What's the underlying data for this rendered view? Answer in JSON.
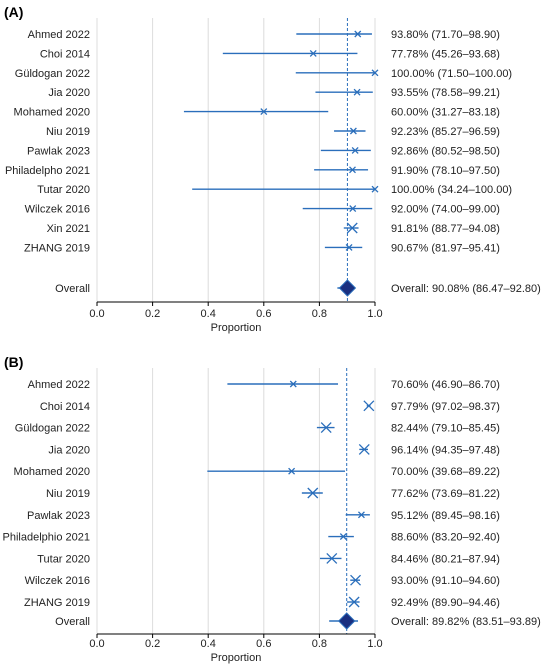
{
  "chart_data": [
    {
      "type": "forest",
      "panel_label": "(A)",
      "xlabel": "Proportion",
      "xlim": [
        0.0,
        1.0
      ],
      "x_ticks": [
        "0.0",
        "0.2",
        "0.4",
        "0.6",
        "0.8",
        "1.0"
      ],
      "grid": true,
      "reference_line": 0.9008,
      "studies": [
        {
          "name": "Ahmed 2022",
          "estimate": 0.938,
          "lower": 0.717,
          "upper": 0.989,
          "label": "93.80% (71.70–98.90)"
        },
        {
          "name": "Choi 2014",
          "estimate": 0.7778,
          "lower": 0.4526,
          "upper": 0.9368,
          "label": "77.78% (45.26–93.68)"
        },
        {
          "name": "Güldogan 2022",
          "estimate": 1.0,
          "lower": 0.715,
          "upper": 1.0,
          "label": "100.00% (71.50–100.00)"
        },
        {
          "name": "Jia 2020",
          "estimate": 0.9355,
          "lower": 0.7858,
          "upper": 0.9921,
          "label": "93.55% (78.58–99.21)"
        },
        {
          "name": "Mohamed 2020",
          "estimate": 0.6,
          "lower": 0.3127,
          "upper": 0.8318,
          "label": "60.00% (31.27–83.18)"
        },
        {
          "name": "Niu 2019",
          "estimate": 0.9223,
          "lower": 0.8527,
          "upper": 0.9659,
          "label": "92.23% (85.27–96.59)"
        },
        {
          "name": "Pawlak 2023",
          "estimate": 0.9286,
          "lower": 0.8052,
          "upper": 0.985,
          "label": "92.86% (80.52–98.50)"
        },
        {
          "name": "Philadelpho 2021",
          "estimate": 0.919,
          "lower": 0.781,
          "upper": 0.975,
          "label": "91.90% (78.10–97.50)"
        },
        {
          "name": "Tutar 2020",
          "estimate": 1.0,
          "lower": 0.3424,
          "upper": 1.0,
          "label": "100.00% (34.24–100.00)"
        },
        {
          "name": "Wilczek 2016",
          "estimate": 0.92,
          "lower": 0.74,
          "upper": 0.99,
          "label": "92.00% (74.00–99.00)"
        },
        {
          "name": "Xin 2021",
          "estimate": 0.9181,
          "lower": 0.8877,
          "upper": 0.9408,
          "label": "91.81% (88.77–94.08)"
        },
        {
          "name": "ZHANG 2019",
          "estimate": 0.9067,
          "lower": 0.8197,
          "upper": 0.9541,
          "label": "90.67% (81.97–95.41)"
        }
      ],
      "overall": {
        "name": "Overall",
        "estimate": 0.9008,
        "lower": 0.8647,
        "upper": 0.928,
        "label": "Overall: 90.08% (86.47–92.80)"
      }
    },
    {
      "type": "forest",
      "panel_label": "(B)",
      "xlabel": "Proportion",
      "xlim": [
        0.0,
        1.0
      ],
      "x_ticks": [
        "0.0",
        "0.2",
        "0.4",
        "0.6",
        "0.8",
        "1.0"
      ],
      "grid": true,
      "reference_line": 0.8982,
      "studies": [
        {
          "name": "Ahmed 2022",
          "estimate": 0.706,
          "lower": 0.469,
          "upper": 0.867,
          "label": "70.60% (46.90–86.70)"
        },
        {
          "name": "Choi 2014",
          "estimate": 0.9779,
          "lower": 0.9702,
          "upper": 0.9837,
          "label": "97.79% (97.02–98.37)"
        },
        {
          "name": "Güldogan 2022",
          "estimate": 0.8244,
          "lower": 0.791,
          "upper": 0.8545,
          "label": "82.44% (79.10–85.45)"
        },
        {
          "name": "Jia 2020",
          "estimate": 0.9614,
          "lower": 0.9435,
          "upper": 0.9748,
          "label": "96.14% (94.35–97.48)"
        },
        {
          "name": "Mohamed 2020",
          "estimate": 0.7,
          "lower": 0.3968,
          "upper": 0.8922,
          "label": "70.00% (39.68–89.22)"
        },
        {
          "name": "Niu 2019",
          "estimate": 0.7762,
          "lower": 0.7369,
          "upper": 0.8122,
          "label": "77.62% (73.69–81.22)"
        },
        {
          "name": "Pawlak 2023",
          "estimate": 0.9512,
          "lower": 0.8945,
          "upper": 0.9816,
          "label": "95.12% (89.45–98.16)"
        },
        {
          "name": "Philadelphio 2021",
          "estimate": 0.886,
          "lower": 0.832,
          "upper": 0.924,
          "label": "88.60% (83.20–92.40)"
        },
        {
          "name": "Tutar 2020",
          "estimate": 0.8446,
          "lower": 0.8021,
          "upper": 0.8794,
          "label": "84.46% (80.21–87.94)"
        },
        {
          "name": "Wilczek 2016",
          "estimate": 0.93,
          "lower": 0.911,
          "upper": 0.946,
          "label": "93.00% (91.10–94.60)"
        },
        {
          "name": "ZHANG 2019",
          "estimate": 0.9249,
          "lower": 0.899,
          "upper": 0.9446,
          "label": "92.49% (89.90–94.46)"
        }
      ],
      "overall": {
        "name": "Overall",
        "estimate": 0.8982,
        "lower": 0.8351,
        "upper": 0.9389,
        "label": "Overall: 89.82% (83.51–93.89)"
      }
    }
  ],
  "colors": {
    "ci_line": "#2a6ebb",
    "marker": "#2a6ebb",
    "diamond_fill": "#1a2f80",
    "diamond_stroke": "#2a6ebb",
    "grid": "#dcdcdc",
    "axis": "#000000",
    "text": "#222222"
  }
}
